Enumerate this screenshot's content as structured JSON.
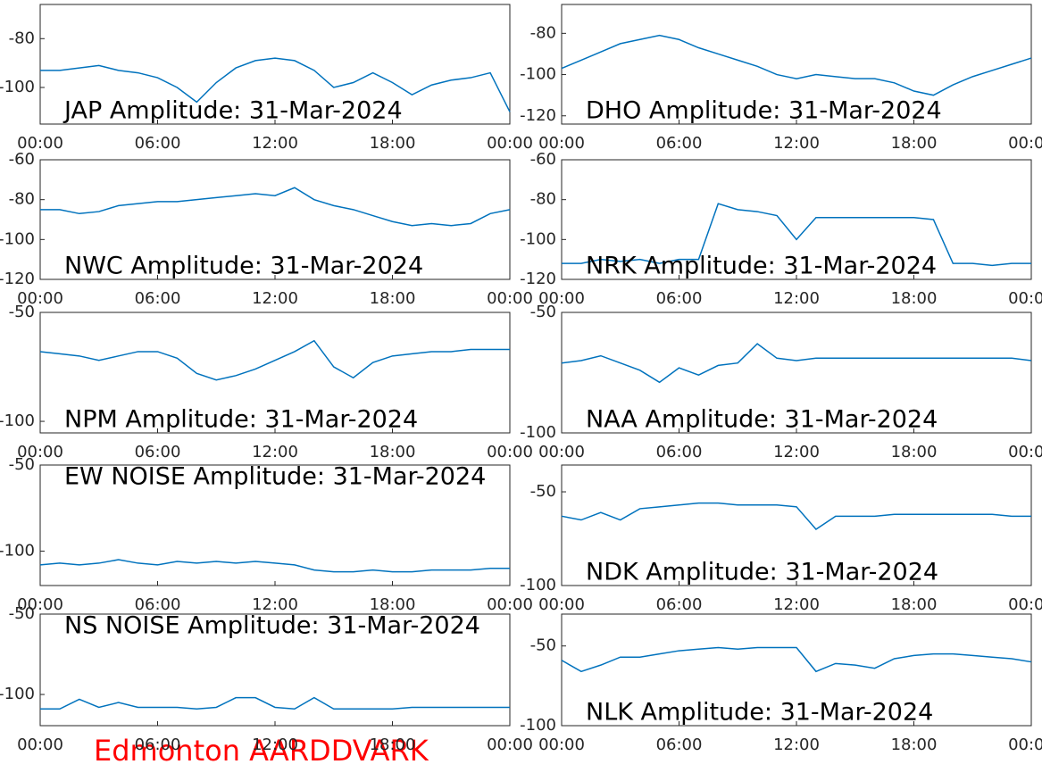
{
  "site_label": "Edmonton AARDDVARK",
  "chart_data": [
    {
      "type": "line",
      "annotation": "JAP Amplitude: 31-Mar-2024",
      "x": [
        0,
        1,
        2,
        3,
        4,
        5,
        6,
        7,
        8,
        9,
        10,
        11,
        12,
        13,
        14,
        15,
        16,
        17,
        18,
        19,
        20,
        21,
        22,
        23,
        24
      ],
      "xlim": [
        0,
        24
      ],
      "xticks": [
        {
          "value": 0,
          "label": "00:00"
        },
        {
          "value": 6,
          "label": "06:00"
        },
        {
          "value": 12,
          "label": "12:00"
        },
        {
          "value": 18,
          "label": "18:00"
        },
        {
          "value": 24,
          "label": "00:00"
        }
      ],
      "ylim": [
        -115,
        -66
      ],
      "yticks": [
        -80,
        -100
      ],
      "color": "#0072bd",
      "values": [
        -93,
        -93,
        -92,
        -91,
        -93,
        -94,
        -96,
        -100,
        -106,
        -98,
        -92,
        -89,
        -88,
        -89,
        -93,
        -100,
        -98,
        -94,
        -98,
        -103,
        -99,
        -97,
        -96,
        -94,
        -110
      ]
    },
    {
      "type": "line",
      "annotation": "DHO Amplitude: 31-Mar-2024",
      "x": [
        0,
        1,
        2,
        3,
        4,
        5,
        6,
        7,
        8,
        9,
        10,
        11,
        12,
        13,
        14,
        15,
        16,
        17,
        18,
        19,
        20,
        21,
        22,
        23,
        24
      ],
      "xlim": [
        0,
        24
      ],
      "xticks": [
        {
          "value": 0,
          "label": "00:00"
        },
        {
          "value": 6,
          "label": "06:00"
        },
        {
          "value": 12,
          "label": "12:00"
        },
        {
          "value": 18,
          "label": "18:00"
        },
        {
          "value": 24,
          "label": "00:00"
        }
      ],
      "ylim": [
        -124,
        -66
      ],
      "yticks": [
        -80,
        -100,
        -120
      ],
      "color": "#0072bd",
      "values": [
        -97,
        -93,
        -89,
        -85,
        -83,
        -81,
        -83,
        -87,
        -90,
        -93,
        -96,
        -100,
        -102,
        -100,
        -101,
        -102,
        -102,
        -104,
        -108,
        -110,
        -105,
        -101,
        -98,
        -95,
        -92
      ]
    },
    {
      "type": "line",
      "annotation": "NWC Amplitude: 31-Mar-2024",
      "x": [
        0,
        1,
        2,
        3,
        4,
        5,
        6,
        7,
        8,
        9,
        10,
        11,
        12,
        13,
        14,
        15,
        16,
        17,
        18,
        19,
        20,
        21,
        22,
        23,
        24
      ],
      "xlim": [
        0,
        24
      ],
      "xticks": [
        {
          "value": 0,
          "label": "00:00"
        },
        {
          "value": 6,
          "label": "06:00"
        },
        {
          "value": 12,
          "label": "12:00"
        },
        {
          "value": 18,
          "label": "18:00"
        },
        {
          "value": 24,
          "label": "00:00"
        }
      ],
      "ylim": [
        -120,
        -60
      ],
      "yticks": [
        -60,
        -80,
        -100,
        -120
      ],
      "color": "#0072bd",
      "values": [
        -85,
        -85,
        -87,
        -86,
        -83,
        -82,
        -81,
        -81,
        -80,
        -79,
        -78,
        -77,
        -78,
        -74,
        -80,
        -83,
        -85,
        -88,
        -91,
        -93,
        -92,
        -93,
        -92,
        -87,
        -85
      ]
    },
    {
      "type": "line",
      "annotation": "NRK Amplitude: 31-Mar-2024",
      "x": [
        0,
        1,
        2,
        3,
        4,
        5,
        6,
        7,
        8,
        9,
        10,
        11,
        12,
        13,
        14,
        15,
        16,
        17,
        18,
        19,
        20,
        21,
        22,
        23,
        24
      ],
      "xlim": [
        0,
        24
      ],
      "xticks": [
        {
          "value": 0,
          "label": "00:00"
        },
        {
          "value": 6,
          "label": "06:00"
        },
        {
          "value": 12,
          "label": "12:00"
        },
        {
          "value": 18,
          "label": "18:00"
        },
        {
          "value": 24,
          "label": "00:00"
        }
      ],
      "ylim": [
        -120,
        -60
      ],
      "yticks": [
        -60,
        -80,
        -100,
        -120
      ],
      "color": "#0072bd",
      "values": [
        -112,
        -112,
        -110,
        -111,
        -110,
        -112,
        -110,
        -110,
        -82,
        -85,
        -86,
        -88,
        -100,
        -89,
        -89,
        -89,
        -89,
        -89,
        -89,
        -90,
        -112,
        -112,
        -113,
        -112,
        -112
      ]
    },
    {
      "type": "line",
      "annotation": "NPM Amplitude: 31-Mar-2024",
      "x": [
        0,
        1,
        2,
        3,
        4,
        5,
        6,
        7,
        8,
        9,
        10,
        11,
        12,
        13,
        14,
        15,
        16,
        17,
        18,
        19,
        20,
        21,
        22,
        23,
        24
      ],
      "xlim": [
        0,
        24
      ],
      "xticks": [
        {
          "value": 0,
          "label": "00:00"
        },
        {
          "value": 6,
          "label": "06:00"
        },
        {
          "value": 12,
          "label": "12:00"
        },
        {
          "value": 18,
          "label": "18:00"
        },
        {
          "value": 24,
          "label": "00:00"
        }
      ],
      "ylim": [
        -105.3,
        -50
      ],
      "yticks": [
        -50,
        -100
      ],
      "color": "#0072bd",
      "values": [
        -68,
        -69,
        -70,
        -72,
        -70,
        -68,
        -68,
        -71,
        -78,
        -81,
        -79,
        -76,
        -72,
        -68,
        -63,
        -75,
        -80,
        -73,
        -70,
        -69,
        -68,
        -68,
        -67,
        -67,
        -67
      ]
    },
    {
      "type": "line",
      "annotation": "NAA Amplitude: 31-Mar-2024",
      "x": [
        0,
        1,
        2,
        3,
        4,
        5,
        6,
        7,
        8,
        9,
        10,
        11,
        12,
        13,
        14,
        15,
        16,
        17,
        18,
        19,
        20,
        21,
        22,
        23,
        24
      ],
      "xlim": [
        0,
        24
      ],
      "xticks": [
        {
          "value": 0,
          "label": "00:00"
        },
        {
          "value": 6,
          "label": "06:00"
        },
        {
          "value": 12,
          "label": "12:00"
        },
        {
          "value": 18,
          "label": "18:00"
        },
        {
          "value": 24,
          "label": "00:00"
        }
      ],
      "ylim": [
        -100,
        -50
      ],
      "yticks": [
        -50,
        -100
      ],
      "color": "#0072bd",
      "values": [
        -71,
        -70,
        -68,
        -71,
        -74,
        -79,
        -73,
        -76,
        -72,
        -71,
        -63,
        -69,
        -70,
        -69,
        -69,
        -69,
        -69,
        -69,
        -69,
        -69,
        -69,
        -69,
        -69,
        -69,
        -70
      ]
    },
    {
      "type": "line",
      "annotation": "EW NOISE Amplitude: 31-Mar-2024",
      "x": [
        0,
        1,
        2,
        3,
        4,
        5,
        6,
        7,
        8,
        9,
        10,
        11,
        12,
        13,
        14,
        15,
        16,
        17,
        18,
        19,
        20,
        21,
        22,
        23,
        24
      ],
      "xlim": [
        0,
        24
      ],
      "xticks": [
        {
          "value": 0,
          "label": "00:00"
        },
        {
          "value": 6,
          "label": "06:00"
        },
        {
          "value": 12,
          "label": "12:00"
        },
        {
          "value": 18,
          "label": "18:00"
        },
        {
          "value": 24,
          "label": "00:00"
        }
      ],
      "ylim": [
        -120,
        -50
      ],
      "yticks": [
        -50,
        -100
      ],
      "color": "#0072bd",
      "values": [
        -108,
        -107,
        -108,
        -107,
        -105,
        -107,
        -108,
        -106,
        -107,
        -106,
        -107,
        -106,
        -107,
        -108,
        -111,
        -112,
        -112,
        -111,
        -112,
        -112,
        -111,
        -111,
        -111,
        -110,
        -110
      ]
    },
    {
      "type": "line",
      "annotation": "NDK Amplitude: 31-Mar-2024",
      "x": [
        0,
        1,
        2,
        3,
        4,
        5,
        6,
        7,
        8,
        9,
        10,
        11,
        12,
        13,
        14,
        15,
        16,
        17,
        18,
        19,
        20,
        21,
        22,
        23,
        24
      ],
      "xlim": [
        0,
        24
      ],
      "xticks": [
        {
          "value": 0,
          "label": "00:00"
        },
        {
          "value": 6,
          "label": "06:00"
        },
        {
          "value": 12,
          "label": "12:00"
        },
        {
          "value": 18,
          "label": "18:00"
        },
        {
          "value": 24,
          "label": "00:00"
        }
      ],
      "ylim": [
        -100,
        -35.7
      ],
      "yticks": [
        -50,
        -100
      ],
      "color": "#0072bd",
      "values": [
        -63,
        -65,
        -61,
        -65,
        -59,
        -58,
        -57,
        -56,
        -56,
        -57,
        -57,
        -57,
        -58,
        -70,
        -63,
        -63,
        -63,
        -62,
        -62,
        -62,
        -62,
        -62,
        -62,
        -63,
        -63
      ]
    },
    {
      "type": "line",
      "annotation": "NS NOISE Amplitude: 31-Mar-2024",
      "x": [
        0,
        1,
        2,
        3,
        4,
        5,
        6,
        7,
        8,
        9,
        10,
        11,
        12,
        13,
        14,
        15,
        16,
        17,
        18,
        19,
        20,
        21,
        22,
        23,
        24
      ],
      "xlim": [
        0,
        24
      ],
      "xticks": [
        {
          "value": 0,
          "label": "00:00"
        },
        {
          "value": 6,
          "label": "06:00"
        },
        {
          "value": 12,
          "label": "12:00"
        },
        {
          "value": 18,
          "label": "18:00"
        },
        {
          "value": 24,
          "label": "00:00"
        }
      ],
      "ylim": [
        -119.4,
        -50
      ],
      "yticks": [
        -50,
        -100
      ],
      "color": "#0072bd",
      "values": [
        -109,
        -109,
        -103,
        -108,
        -105,
        -108,
        -108,
        -108,
        -109,
        -108,
        -102,
        -102,
        -108,
        -109,
        -102,
        -109,
        -109,
        -109,
        -109,
        -108,
        -108,
        -108,
        -108,
        -108,
        -108
      ]
    },
    {
      "type": "line",
      "annotation": "NLK Amplitude: 31-Mar-2024",
      "x": [
        0,
        1,
        2,
        3,
        4,
        5,
        6,
        7,
        8,
        9,
        10,
        11,
        12,
        13,
        14,
        15,
        16,
        17,
        18,
        19,
        20,
        21,
        22,
        23,
        24
      ],
      "xlim": [
        0,
        24
      ],
      "xticks": [
        {
          "value": 0,
          "label": "00:00"
        },
        {
          "value": 6,
          "label": "06:00"
        },
        {
          "value": 12,
          "label": "12:00"
        },
        {
          "value": 18,
          "label": "18:00"
        },
        {
          "value": 24,
          "label": "00:00"
        }
      ],
      "ylim": [
        -100,
        -30
      ],
      "yticks": [
        -50,
        -100
      ],
      "color": "#0072bd",
      "values": [
        -59,
        -66,
        -62,
        -57,
        -57,
        -55,
        -53,
        -52,
        -51,
        -52,
        -51,
        -51,
        -51,
        -66,
        -61,
        -62,
        -64,
        -58,
        -56,
        -55,
        -55,
        -56,
        -57,
        -58,
        -60
      ]
    }
  ]
}
